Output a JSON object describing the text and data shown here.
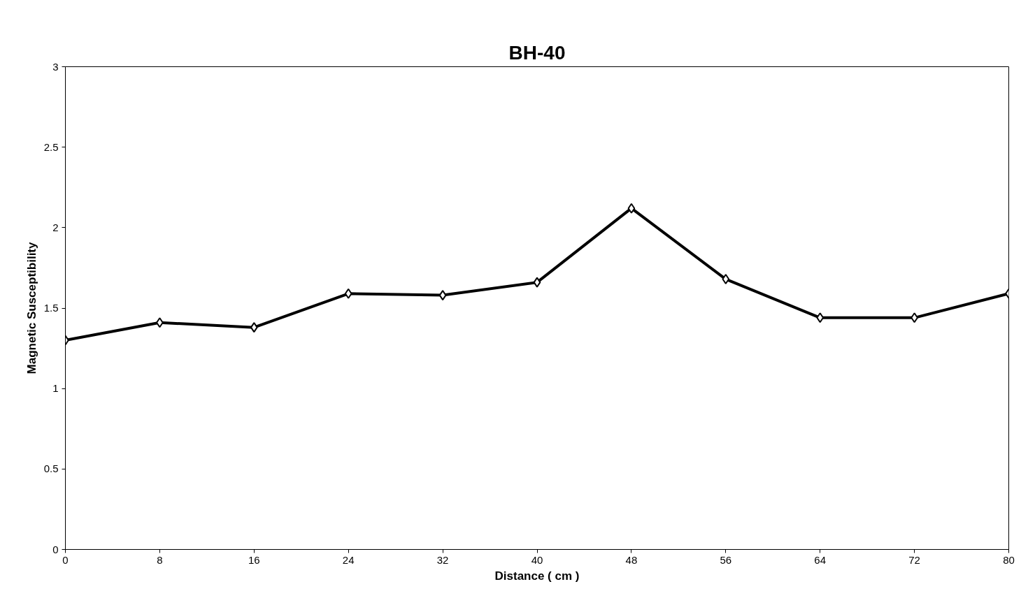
{
  "chart_data": {
    "type": "line",
    "title": "BH-40",
    "xlabel": "Distance ( cm )",
    "ylabel": "Magnetic Susceptibility",
    "x": [
      0,
      8,
      16,
      24,
      32,
      40,
      48,
      56,
      64,
      72,
      80
    ],
    "series": [
      {
        "color": "#000000",
        "values": [
          1.3,
          1.41,
          1.38,
          1.59,
          1.58,
          1.66,
          2.12,
          1.68,
          1.44,
          1.44,
          1.59
        ]
      }
    ],
    "xlim": [
      0,
      80
    ],
    "xticks": [
      0,
      8,
      16,
      24,
      32,
      40,
      48,
      56,
      64,
      72,
      80
    ],
    "ylim": [
      0,
      3
    ],
    "yticks": [
      0,
      0.5,
      1,
      1.5,
      2,
      2.5,
      3
    ],
    "grid": false,
    "marker": "diamond",
    "line_style": "solid"
  }
}
